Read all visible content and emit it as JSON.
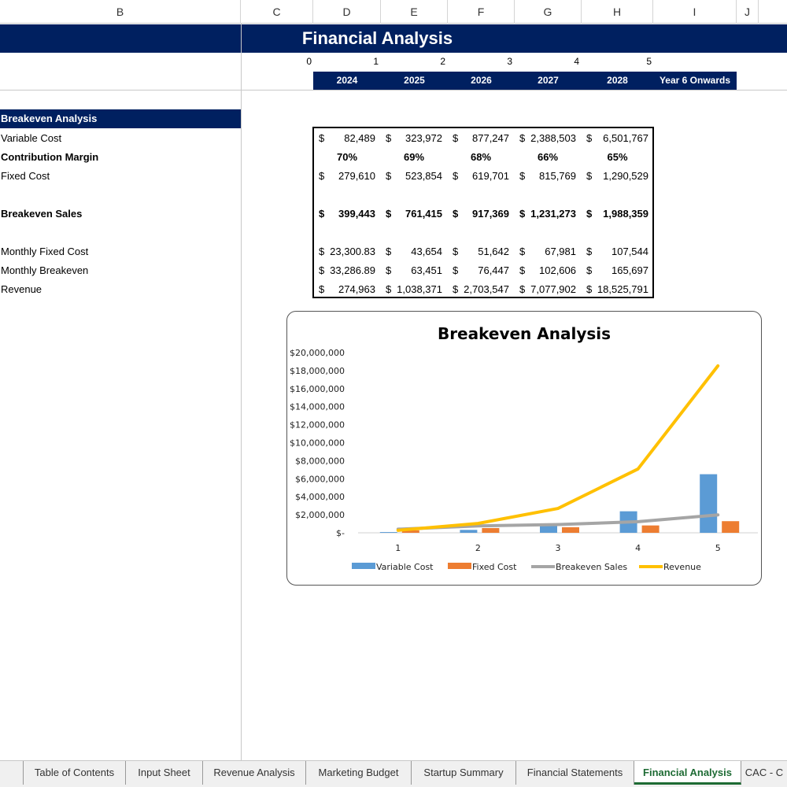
{
  "columns": [
    "B",
    "C",
    "D",
    "E",
    "F",
    "G",
    "H",
    "I",
    "J"
  ],
  "title": "Financial Analysis",
  "year_numbers": [
    "0",
    "1",
    "2",
    "3",
    "4",
    "5"
  ],
  "years": [
    "2024",
    "2025",
    "2026",
    "2027",
    "2028",
    "Year 6 Onwards"
  ],
  "section": "Breakeven Analysis",
  "row_labels": {
    "variable_cost": "Variable Cost",
    "contribution_margin": "Contribution Margin",
    "fixed_cost": "Fixed Cost",
    "breakeven_sales": "Breakeven Sales",
    "monthly_fixed_cost": "Monthly Fixed Cost",
    "monthly_breakeven": "Monthly Breakeven",
    "revenue": "Revenue"
  },
  "currency": "$",
  "table": {
    "variable_cost": [
      "82,489",
      "323,972",
      "877,247",
      "2,388,503",
      "6,501,767"
    ],
    "contribution_margin": [
      "70%",
      "69%",
      "68%",
      "66%",
      "65%"
    ],
    "fixed_cost": [
      "279,610",
      "523,854",
      "619,701",
      "815,769",
      "1,290,529"
    ],
    "breakeven_sales": [
      "399,443",
      "761,415",
      "917,369",
      "1,231,273",
      "1,988,359"
    ],
    "monthly_fixed_cost": [
      "23,300.83",
      "43,654",
      "51,642",
      "67,981",
      "107,544"
    ],
    "monthly_breakeven": [
      "33,286.89",
      "63,451",
      "76,447",
      "102,606",
      "165,697"
    ],
    "revenue": [
      "274,963",
      "1,038,371",
      "2,703,547",
      "7,077,902",
      "18,525,791"
    ]
  },
  "chart_data": {
    "type": "bar",
    "title": "Breakeven Analysis",
    "categories": [
      "1",
      "2",
      "3",
      "4",
      "5"
    ],
    "ylim": [
      0,
      20000000
    ],
    "yticks": [
      "$-",
      "$2,000,000",
      "$4,000,000",
      "$6,000,000",
      "$8,000,000",
      "$10,000,000",
      "$12,000,000",
      "$14,000,000",
      "$16,000,000",
      "$18,000,000",
      "$20,000,000"
    ],
    "series": [
      {
        "name": "Variable Cost",
        "kind": "bar",
        "color": "#5b9bd5",
        "values": [
          82489,
          323972,
          877247,
          2388503,
          6501767
        ]
      },
      {
        "name": "Fixed Cost",
        "kind": "bar",
        "color": "#ed7d31",
        "values": [
          279610,
          523854,
          619701,
          815769,
          1290529
        ]
      },
      {
        "name": "Breakeven Sales",
        "kind": "line",
        "color": "#a5a5a5",
        "values": [
          399443,
          761415,
          917369,
          1231273,
          1988359
        ]
      },
      {
        "name": "Revenue",
        "kind": "line",
        "color": "#ffc000",
        "values": [
          274963,
          1038371,
          2703547,
          7077902,
          18525791
        ]
      }
    ],
    "legend_position": "bottom",
    "grid": false
  },
  "tabs": [
    "Table of Contents",
    "Input Sheet",
    "Revenue Analysis",
    "Marketing Budget",
    "Startup Summary",
    "Financial Statements",
    "Financial Analysis",
    "CAC - C"
  ],
  "active_tab": "Financial Analysis"
}
